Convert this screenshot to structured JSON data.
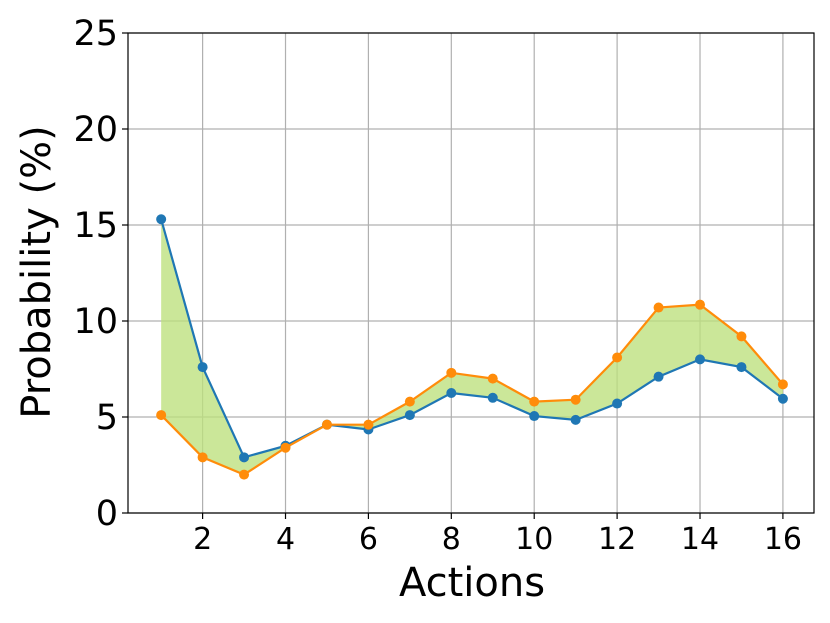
{
  "chart_data": {
    "type": "line",
    "title": "",
    "xlabel": "Actions",
    "ylabel": "Probability (%)",
    "x": [
      1,
      2,
      3,
      4,
      5,
      6,
      7,
      8,
      9,
      10,
      11,
      12,
      13,
      14,
      15,
      16
    ],
    "xlim": [
      0.2,
      16.75
    ],
    "ylim": [
      0,
      25
    ],
    "xticks": [
      2,
      4,
      6,
      8,
      10,
      12,
      14,
      16
    ],
    "yticks": [
      0,
      5,
      10,
      15,
      20,
      25
    ],
    "xtick_labels": [
      "2",
      "4",
      "6",
      "8",
      "10",
      "12",
      "14",
      "16"
    ],
    "ytick_labels": [
      "0",
      "5",
      "10",
      "15",
      "20",
      "25"
    ],
    "grid": true,
    "fill_between": {
      "color": "#bde07c",
      "opacity": 0.78
    },
    "series": [
      {
        "values": [
          15.3,
          7.6,
          2.9,
          3.5,
          4.6,
          4.35,
          5.1,
          6.25,
          6.0,
          5.05,
          4.85,
          5.7,
          7.1,
          8.0,
          7.6,
          5.95
        ],
        "color": "#1f77b4"
      },
      {
        "values": [
          5.1,
          2.9,
          2.0,
          3.4,
          4.6,
          4.6,
          5.8,
          7.3,
          7.0,
          5.8,
          5.9,
          8.1,
          10.7,
          10.85,
          9.2,
          6.7
        ],
        "color": "#ff8c0a"
      }
    ]
  }
}
